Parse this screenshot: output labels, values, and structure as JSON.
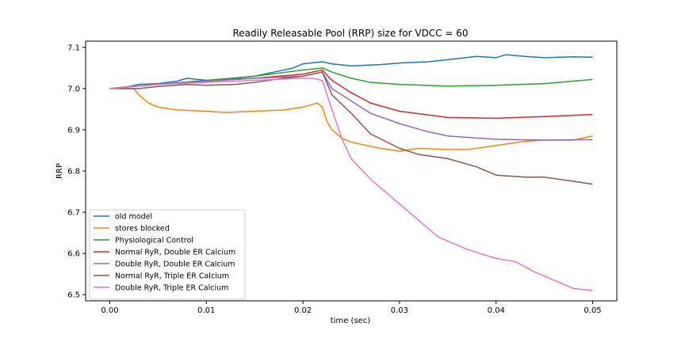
{
  "chart_data": {
    "type": "line",
    "title": "Readily Releasable Pool (RRP) size for VDCC = 60",
    "xlabel": "time (sec)",
    "ylabel": "RRP",
    "xlim": [
      -0.0025,
      0.0525
    ],
    "ylim": [
      6.485,
      7.115
    ],
    "xticks": [
      0.0,
      0.01,
      0.02,
      0.03,
      0.04,
      0.05
    ],
    "xtick_labels": [
      "0.00",
      "0.01",
      "0.02",
      "0.03",
      "0.04",
      "0.05"
    ],
    "yticks": [
      6.5,
      6.6,
      6.7,
      6.8,
      6.9,
      7.0,
      7.1
    ],
    "ytick_labels": [
      "6.5",
      "6.6",
      "6.7",
      "6.8",
      "6.9",
      "7.0",
      "7.1"
    ],
    "grid": false,
    "legend_position": "lower-left",
    "series": [
      {
        "name": "old model",
        "color": "#1f77b4",
        "x": [
          0,
          0.002,
          0.003,
          0.005,
          0.007,
          0.008,
          0.01,
          0.012,
          0.015,
          0.018,
          0.019,
          0.02,
          0.022,
          0.023,
          0.025,
          0.028,
          0.03,
          0.033,
          0.035,
          0.038,
          0.04,
          0.041,
          0.043,
          0.045,
          0.048,
          0.05
        ],
        "y": [
          7.0,
          7.005,
          7.01,
          7.012,
          7.018,
          7.025,
          7.02,
          7.022,
          7.03,
          7.045,
          7.05,
          7.06,
          7.065,
          7.06,
          7.055,
          7.058,
          7.062,
          7.065,
          7.07,
          7.078,
          7.075,
          7.082,
          7.078,
          7.075,
          7.077,
          7.076
        ]
      },
      {
        "name": "stores blocked",
        "color": "#ff7f0e",
        "x": [
          0,
          0.0025,
          0.003,
          0.004,
          0.005,
          0.007,
          0.01,
          0.012,
          0.015,
          0.018,
          0.02,
          0.0215,
          0.022,
          0.0225,
          0.023,
          0.024,
          0.025,
          0.027,
          0.028,
          0.03,
          0.032,
          0.035,
          0.037,
          0.04,
          0.043,
          0.045,
          0.048,
          0.05
        ],
        "y": [
          7.0,
          7.0,
          6.985,
          6.965,
          6.955,
          6.948,
          6.945,
          6.942,
          6.945,
          6.948,
          6.955,
          6.965,
          6.955,
          6.92,
          6.9,
          6.88,
          6.87,
          6.86,
          6.855,
          6.848,
          6.855,
          6.852,
          6.852,
          6.862,
          6.872,
          6.875,
          6.875,
          6.885
        ]
      },
      {
        "name": "Physiological Control",
        "color": "#2ca02c",
        "x": [
          0,
          0.005,
          0.01,
          0.015,
          0.02,
          0.022,
          0.023,
          0.025,
          0.027,
          0.03,
          0.035,
          0.04,
          0.045,
          0.05
        ],
        "y": [
          7.0,
          7.01,
          7.02,
          7.03,
          7.045,
          7.05,
          7.04,
          7.025,
          7.015,
          7.01,
          7.006,
          7.008,
          7.012,
          7.022
        ]
      },
      {
        "name": "Normal RyR, Double ER Calcium",
        "color": "#d62728",
        "x": [
          0,
          0.005,
          0.01,
          0.015,
          0.02,
          0.022,
          0.023,
          0.025,
          0.027,
          0.03,
          0.035,
          0.04,
          0.045,
          0.05
        ],
        "y": [
          7.0,
          7.01,
          7.018,
          7.025,
          7.035,
          7.045,
          7.02,
          6.99,
          6.965,
          6.945,
          6.93,
          6.928,
          6.932,
          6.937
        ]
      },
      {
        "name": "Double RyR, Double ER Calcium",
        "color": "#9467bd",
        "x": [
          0,
          0.005,
          0.01,
          0.015,
          0.02,
          0.022,
          0.023,
          0.025,
          0.027,
          0.03,
          0.033,
          0.035,
          0.038,
          0.04,
          0.045,
          0.05
        ],
        "y": [
          7.0,
          7.01,
          7.018,
          7.025,
          7.03,
          7.04,
          7.0,
          6.97,
          6.94,
          6.915,
          6.895,
          6.885,
          6.88,
          6.877,
          6.875,
          6.876
        ]
      },
      {
        "name": "Normal RyR, Triple ER Calcium",
        "color": "#8c564b",
        "x": [
          0,
          0.003,
          0.005,
          0.008,
          0.01,
          0.013,
          0.015,
          0.018,
          0.02,
          0.022,
          0.023,
          0.025,
          0.027,
          0.03,
          0.032,
          0.035,
          0.038,
          0.04,
          0.043,
          0.045,
          0.048,
          0.05
        ],
        "y": [
          7.0,
          7.0,
          7.005,
          7.01,
          7.008,
          7.01,
          7.015,
          7.025,
          7.03,
          7.04,
          6.985,
          6.94,
          6.89,
          6.855,
          6.84,
          6.83,
          6.81,
          6.79,
          6.785,
          6.785,
          6.775,
          6.768
        ]
      },
      {
        "name": "Double RyR, Triple ER Calcium",
        "color": "#e377c2",
        "x": [
          0,
          0.005,
          0.01,
          0.015,
          0.02,
          0.021,
          0.022,
          0.023,
          0.024,
          0.025,
          0.027,
          0.029,
          0.03,
          0.032,
          0.034,
          0.035,
          0.037,
          0.039,
          0.04,
          0.042,
          0.044,
          0.046,
          0.048,
          0.05
        ],
        "y": [
          7.0,
          7.01,
          7.015,
          7.02,
          7.025,
          7.025,
          7.02,
          6.95,
          6.88,
          6.83,
          6.78,
          6.74,
          6.72,
          6.68,
          6.64,
          6.63,
          6.61,
          6.595,
          6.588,
          6.58,
          6.555,
          6.535,
          6.515,
          6.51
        ]
      }
    ]
  }
}
